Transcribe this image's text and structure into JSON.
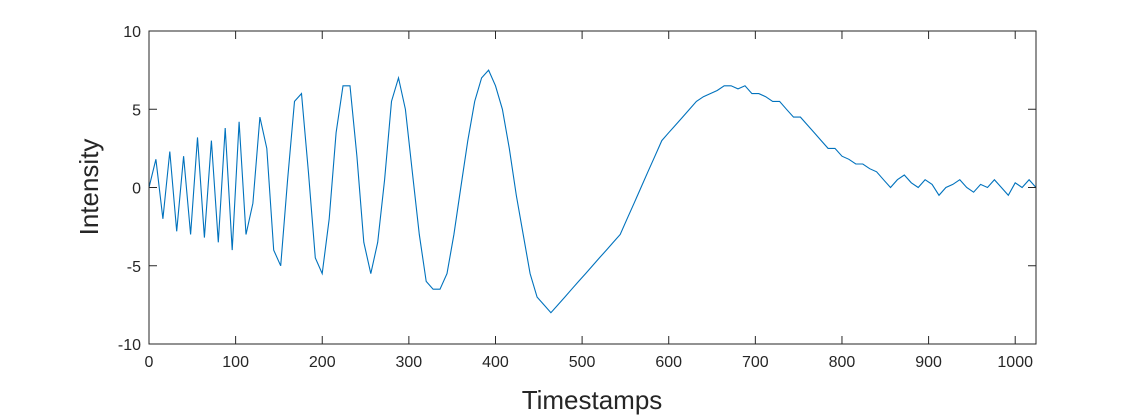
{
  "chart_data": {
    "type": "line",
    "title": "",
    "xlabel": "Timestamps",
    "ylabel": "Intensity",
    "xlim": [
      0,
      1024
    ],
    "ylim": [
      -10,
      10
    ],
    "x_ticks": [
      0,
      100,
      200,
      300,
      400,
      500,
      600,
      700,
      800,
      900,
      1000
    ],
    "y_ticks": [
      -10,
      -5,
      0,
      5,
      10
    ],
    "grid": false,
    "legend": "none",
    "line_color": "#0072BD",
    "axes_color": "#262626",
    "series": [
      {
        "x": [
          0,
          8,
          16,
          24,
          32,
          40,
          48,
          56,
          64,
          72,
          80,
          88,
          96,
          104,
          112,
          120,
          128,
          136,
          144,
          152,
          160,
          168,
          176,
          184,
          192,
          200,
          208,
          216,
          224,
          232,
          240,
          248,
          256,
          264,
          272,
          280,
          288,
          296,
          304,
          312,
          320,
          328,
          336,
          344,
          352,
          360,
          368,
          376,
          384,
          392,
          400,
          408,
          416,
          424,
          432,
          440,
          448,
          456,
          464,
          472,
          480,
          488,
          496,
          504,
          512,
          520,
          528,
          536,
          544,
          552,
          560,
          568,
          576,
          584,
          592,
          600,
          608,
          616,
          624,
          632,
          640,
          648,
          656,
          664,
          672,
          680,
          688,
          696,
          704,
          712,
          720,
          728,
          736,
          744,
          752,
          760,
          768,
          776,
          784,
          792,
          800,
          808,
          816,
          824,
          832,
          840,
          848,
          856,
          864,
          872,
          880,
          888,
          896,
          904,
          912,
          920,
          928,
          936,
          944,
          952,
          960,
          968,
          976,
          984,
          992,
          1000,
          1008,
          1016,
          1024
        ],
        "y": [
          0,
          1.8,
          -2.0,
          2.3,
          -2.8,
          2.0,
          -3.0,
          3.2,
          -3.2,
          3.0,
          -3.5,
          3.8,
          -4.0,
          4.2,
          -3.0,
          -1.0,
          4.5,
          2.5,
          -4.0,
          -5.0,
          0.5,
          5.5,
          6.0,
          1.0,
          -4.5,
          -5.5,
          -2.0,
          3.5,
          6.5,
          6.5,
          2.0,
          -3.5,
          -5.5,
          -3.5,
          0.5,
          5.5,
          7.0,
          5.0,
          1.0,
          -3.0,
          -6.0,
          -6.5,
          -6.5,
          -5.5,
          -3.0,
          0.0,
          3.0,
          5.5,
          7.0,
          7.5,
          6.5,
          5.0,
          2.5,
          -0.5,
          -3.0,
          -5.5,
          -7.0,
          -7.5,
          -8.0,
          -7.5,
          -7.0,
          -6.5,
          -6.0,
          -5.5,
          -5.0,
          -4.5,
          -4.0,
          -3.5,
          -3.0,
          -2.0,
          -1.0,
          0.0,
          1.0,
          2.0,
          3.0,
          3.5,
          4.0,
          4.5,
          5.0,
          5.5,
          5.8,
          6.0,
          6.2,
          6.5,
          6.5,
          6.3,
          6.5,
          6.0,
          6.0,
          5.8,
          5.5,
          5.5,
          5.0,
          4.5,
          4.5,
          4.0,
          3.5,
          3.0,
          2.5,
          2.5,
          2.0,
          1.8,
          1.5,
          1.5,
          1.2,
          1.0,
          0.5,
          0.0,
          0.5,
          0.8,
          0.3,
          0.0,
          0.5,
          0.2,
          -0.5,
          0.0,
          0.2,
          0.5,
          0.0,
          -0.3,
          0.2,
          0.0,
          0.5,
          0.0,
          -0.5,
          0.3,
          0.0,
          0.5,
          0.0
        ]
      }
    ]
  }
}
